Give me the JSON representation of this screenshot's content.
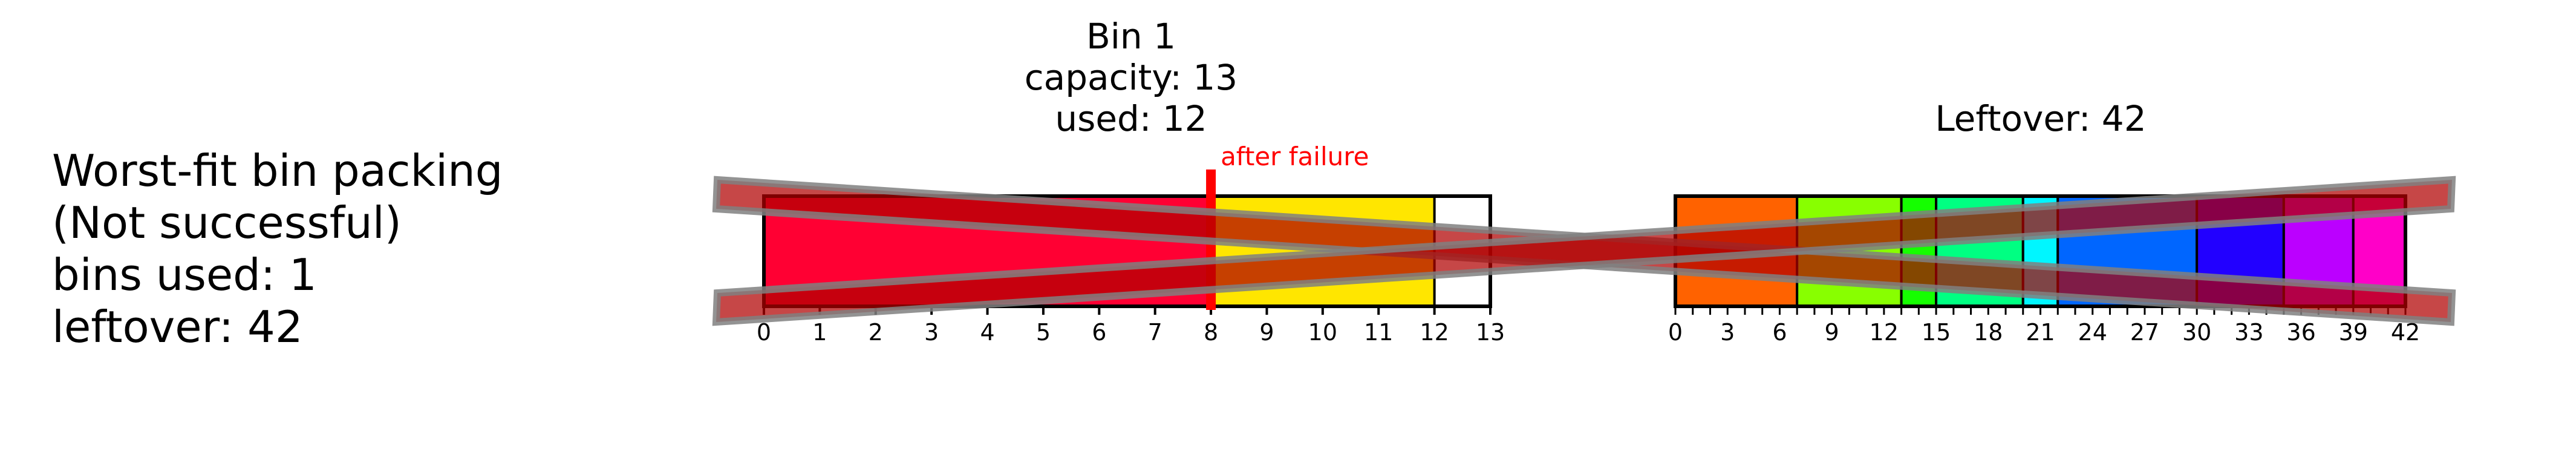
{
  "summary": {
    "lines": [
      "Worst-fit bin packing",
      "(Not successful)",
      "bins used: 1",
      "leftover: 42"
    ]
  },
  "bins": [
    {
      "title_lines": [
        "Bin 1",
        "capacity: 13",
        "used: 12"
      ],
      "capacity": 13,
      "items": [
        {
          "start": 0,
          "end": 8,
          "color": "#ff0033"
        },
        {
          "start": 8,
          "end": 12,
          "color": "#ffe600"
        }
      ],
      "ticks": [
        0,
        1,
        2,
        3,
        4,
        5,
        6,
        7,
        8,
        9,
        10,
        11,
        12,
        13
      ],
      "failure": {
        "at": 8,
        "label": "after failure",
        "color": "#ff0000"
      }
    }
  ],
  "leftover": {
    "title": "Leftover: 42",
    "total": 42,
    "segments": [
      {
        "start": 0,
        "end": 7,
        "color": "#ff6200"
      },
      {
        "start": 7,
        "end": 13,
        "color": "#88ff00"
      },
      {
        "start": 13,
        "end": 15,
        "color": "#15ff00"
      },
      {
        "start": 15,
        "end": 20,
        "color": "#00ff82"
      },
      {
        "start": 20,
        "end": 22,
        "color": "#00f6ff"
      },
      {
        "start": 22,
        "end": 30,
        "color": "#0066ff"
      },
      {
        "start": 30,
        "end": 35,
        "color": "#2200ff"
      },
      {
        "start": 35,
        "end": 39,
        "color": "#bb00ff"
      },
      {
        "start": 39,
        "end": 42,
        "color": "#ff00c8"
      }
    ],
    "ticks": [
      0,
      3,
      6,
      9,
      12,
      15,
      18,
      21,
      24,
      27,
      30,
      33,
      36,
      39,
      42
    ]
  },
  "cross_mark": {
    "color": "#b00000",
    "outline": "#808080"
  }
}
